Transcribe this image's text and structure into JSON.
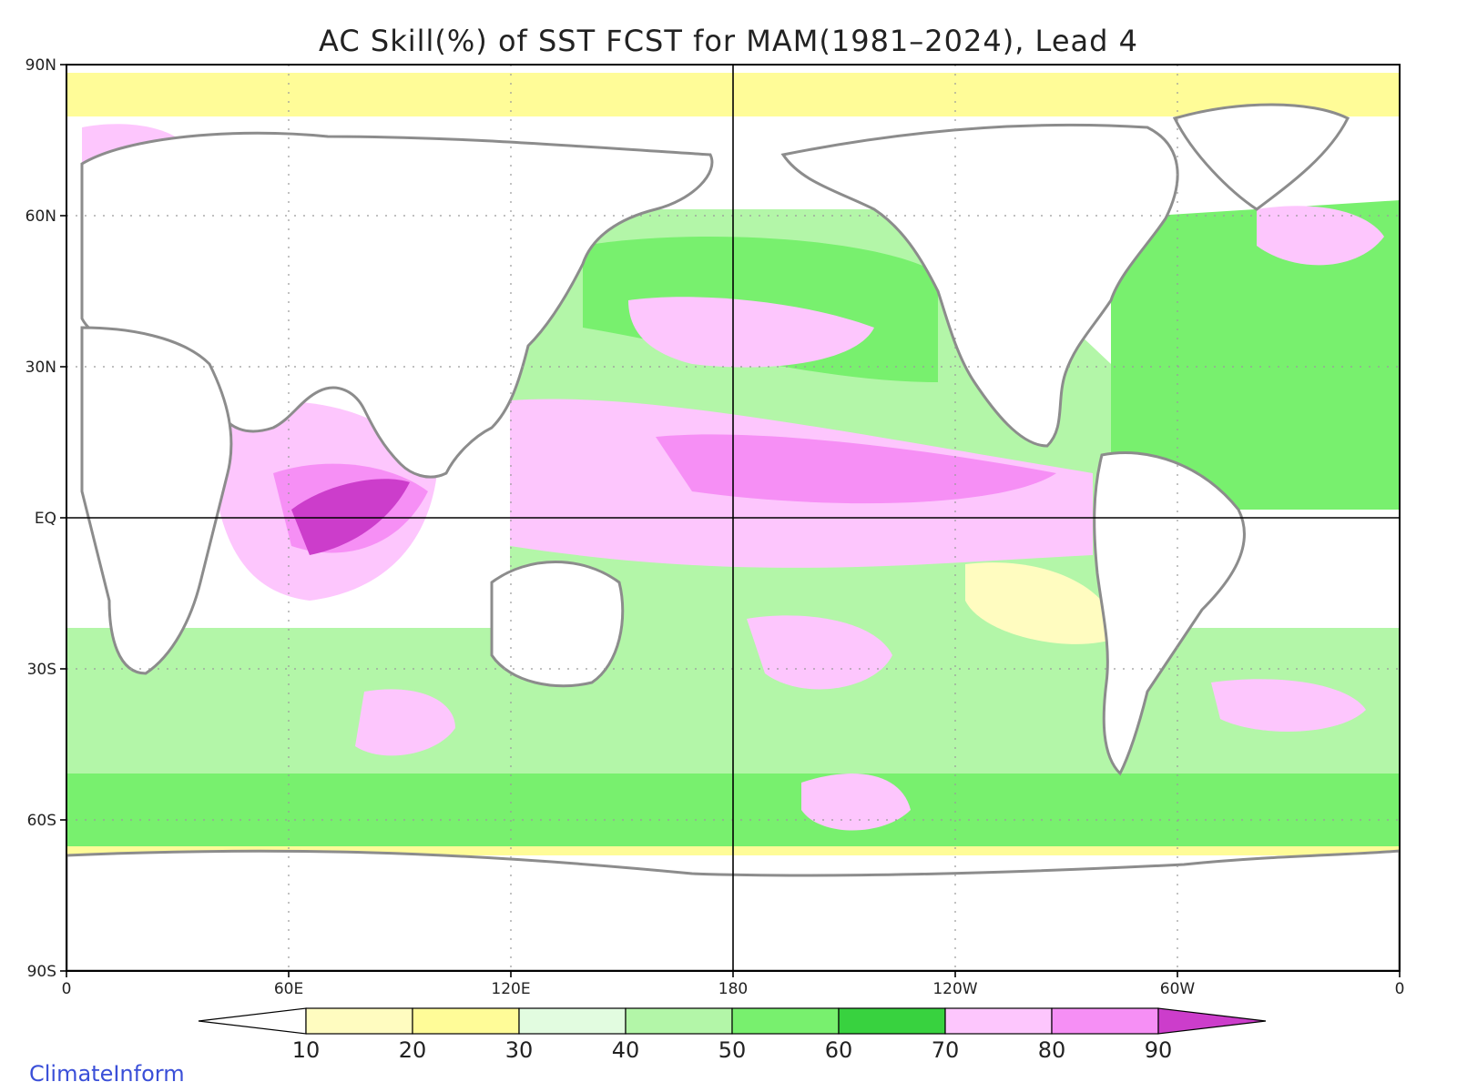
{
  "title": "AC Skill(%) of SST FCST for MAM(1981–2024), Lead 4",
  "credit": "ClimateInform",
  "map": {
    "lat_ticks": [
      "90N",
      "60N",
      "30N",
      "EQ",
      "30S",
      "60S",
      "90S"
    ],
    "lon_ticks": [
      "0",
      "60E",
      "120E",
      "180",
      "120W",
      "60W",
      "0"
    ],
    "gridlines": "dotted",
    "reference_lines": [
      "EQ",
      "180"
    ],
    "ocean_color": "#ffffff",
    "coast_color": "#8c8c8c",
    "lakes_color": "#000000"
  },
  "colorbar": {
    "labels": [
      "10",
      "20",
      "30",
      "40",
      "50",
      "60",
      "70",
      "80",
      "90"
    ],
    "colors": [
      "#ffffff",
      "#fffcc0",
      "#fffc98",
      "#e2fce0",
      "#b3f6a8",
      "#78f06e",
      "#38d23f",
      "#fdc6fd",
      "#f68ff5",
      "#cc3dcb"
    ],
    "ends": "triangular"
  }
}
